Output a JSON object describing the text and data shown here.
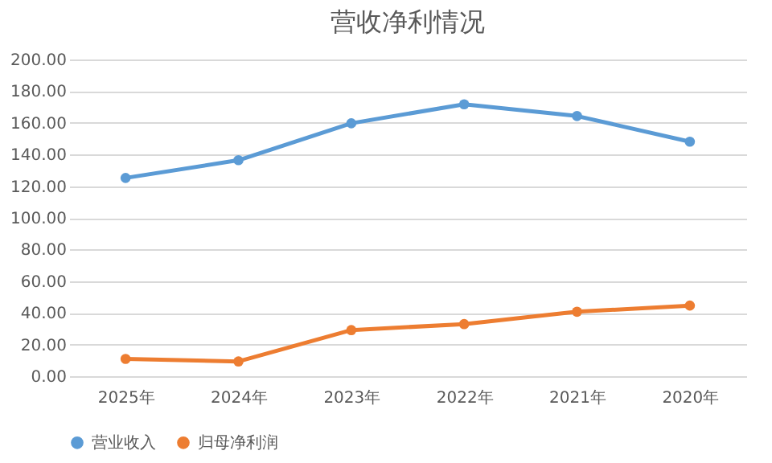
{
  "chart_data": {
    "type": "line",
    "title": "营收净利情况",
    "categories": [
      "2025年",
      "2024年",
      "2023年",
      "2022年",
      "2021年",
      "2020年"
    ],
    "series": [
      {
        "name": "营业收入",
        "color": "#5b9bd5",
        "values": [
          125.2,
          136.4,
          159.7,
          171.7,
          164.3,
          148.1
        ]
      },
      {
        "name": "归母净利润",
        "color": "#ed7d31",
        "values": [
          10.9,
          9.3,
          29.1,
          32.9,
          40.7,
          44.6
        ]
      }
    ],
    "ylim": [
      0,
      200
    ],
    "yticks": [
      {
        "value": 0,
        "label": "0.00"
      },
      {
        "value": 20,
        "label": "20.00"
      },
      {
        "value": 40,
        "label": "40.00"
      },
      {
        "value": 60,
        "label": "60.00"
      },
      {
        "value": 80,
        "label": "80.00"
      },
      {
        "value": 100,
        "label": "100.00"
      },
      {
        "value": 120,
        "label": "120.00"
      },
      {
        "value": 140,
        "label": "140.00"
      },
      {
        "value": 160,
        "label": "160.00"
      },
      {
        "value": 180,
        "label": "180.00"
      },
      {
        "value": 200,
        "label": "200.00"
      }
    ],
    "grid": "y",
    "legend": "bottom",
    "marker": "circle",
    "line_style": "solid"
  }
}
